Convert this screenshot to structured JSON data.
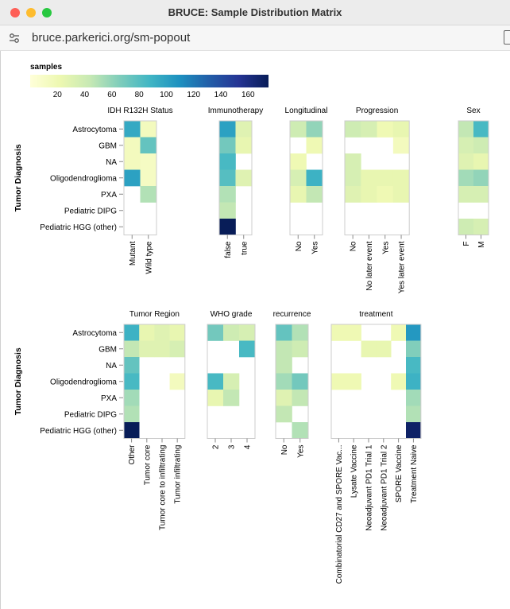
{
  "window": {
    "title": "BRUCE: Sample Distribution Matrix",
    "url": "bruce.parkerici.org/sm-popout"
  },
  "colors": {
    "traffic_close": "#fe5f57",
    "traffic_min": "#febc2e",
    "traffic_max": "#28c840",
    "scale": [
      "#ffffd9",
      "#edf8b1",
      "#c7e9b4",
      "#7fcdbb",
      "#41b6c4",
      "#1d91c0",
      "#225ea8",
      "#253494",
      "#081d58"
    ]
  },
  "chart_data": {
    "type": "heatmap",
    "legend": {
      "title": "samples",
      "domain": [
        0,
        175
      ],
      "ticks": [
        20,
        40,
        60,
        80,
        100,
        120,
        140,
        160
      ]
    },
    "ylabel": "Tumor Diagnosis",
    "rows": [
      "Astrocytoma",
      "GBM",
      "NA",
      "Oligodendroglioma",
      "PXA",
      "Pediatric DIPG",
      "Pediatric HGG (other)"
    ],
    "panel_rows": [
      {
        "panels": [
          {
            "title": "IDH R132H Status",
            "columns": [
              "Mutant",
              "Wild type"
            ],
            "values": [
              [
                95,
                15
              ],
              [
                15,
                75
              ],
              [
                15,
                12
              ],
              [
                100,
                12
              ],
              [
                null,
                50
              ],
              [
                null,
                null
              ],
              [
                null,
                null
              ]
            ]
          },
          {
            "title": "Immunotherapy",
            "columns": [
              "false",
              "true"
            ],
            "values": [
              [
                100,
                30
              ],
              [
                70,
                25
              ],
              [
                85,
                null
              ],
              [
                80,
                30
              ],
              [
                50,
                null
              ],
              [
                45,
                null
              ],
              [
                175,
                null
              ]
            ]
          },
          {
            "title": "Longitudinal",
            "columns": [
              "No",
              "Yes"
            ],
            "values": [
              [
                40,
                60
              ],
              [
                null,
                20
              ],
              [
                20,
                null
              ],
              [
                35,
                90
              ],
              [
                25,
                45
              ],
              [
                null,
                null
              ],
              [
                null,
                null
              ]
            ]
          },
          {
            "title": "Progression",
            "columns": [
              "No",
              "No later event",
              "Yes",
              "Yes later event"
            ],
            "values": [
              [
                40,
                35,
                20,
                25
              ],
              [
                null,
                null,
                null,
                15
              ],
              [
                35,
                null,
                null,
                null
              ],
              [
                35,
                25,
                25,
                25
              ],
              [
                30,
                25,
                20,
                25
              ],
              [
                null,
                null,
                null,
                null
              ],
              [
                null,
                null,
                null,
                null
              ]
            ]
          },
          {
            "title": "Sex",
            "columns": [
              "F",
              "M"
            ],
            "values": [
              [
                45,
                85
              ],
              [
                35,
                40
              ],
              [
                30,
                25
              ],
              [
                55,
                60
              ],
              [
                35,
                35
              ],
              [
                null,
                null
              ],
              [
                40,
                35
              ]
            ]
          }
        ]
      },
      {
        "panels": [
          {
            "title": "Tumor Region",
            "columns": [
              "Other",
              "Tumor core",
              "Tumor core to infiltrating",
              "Tumor infiltrating"
            ],
            "values": [
              [
                90,
                25,
                30,
                25
              ],
              [
                45,
                30,
                30,
                35
              ],
              [
                75,
                null,
                null,
                null
              ],
              [
                85,
                null,
                null,
                15
              ],
              [
                55,
                null,
                null,
                null
              ],
              [
                50,
                null,
                null,
                null
              ],
              [
                175,
                null,
                null,
                null
              ]
            ]
          },
          {
            "title": "WHO grade",
            "columns": [
              "2",
              "3",
              "4"
            ],
            "values": [
              [
                70,
                40,
                35
              ],
              [
                null,
                null,
                85
              ],
              [
                null,
                null,
                null
              ],
              [
                85,
                35,
                null
              ],
              [
                25,
                45,
                null
              ],
              [
                null,
                null,
                null
              ],
              [
                null,
                null,
                null
              ]
            ]
          },
          {
            "title": "recurrence",
            "columns": [
              "No",
              "Yes"
            ],
            "values": [
              [
                75,
                50
              ],
              [
                45,
                40
              ],
              [
                45,
                null
              ],
              [
                55,
                70
              ],
              [
                30,
                45
              ],
              [
                45,
                null
              ],
              [
                null,
                50
              ]
            ]
          },
          {
            "title": "treatment",
            "columns": [
              "Combinatorial CD27 and SPORE Vac...",
              "Lysate Vaccine",
              "Neoadjuvant PD1 Trial 1",
              "Neoadjuvant PD1 Trial 2",
              "SPORE Vaccine",
              "Treatment Naive"
            ],
            "values": [
              [
                20,
                20,
                null,
                null,
                20,
                105
              ],
              [
                null,
                null,
                25,
                25,
                null,
                65
              ],
              [
                null,
                null,
                null,
                null,
                null,
                85
              ],
              [
                20,
                20,
                null,
                null,
                20,
                90
              ],
              [
                null,
                null,
                null,
                null,
                null,
                55
              ],
              [
                null,
                null,
                null,
                null,
                null,
                50
              ],
              [
                null,
                null,
                null,
                null,
                null,
                170
              ]
            ]
          }
        ]
      }
    ]
  }
}
